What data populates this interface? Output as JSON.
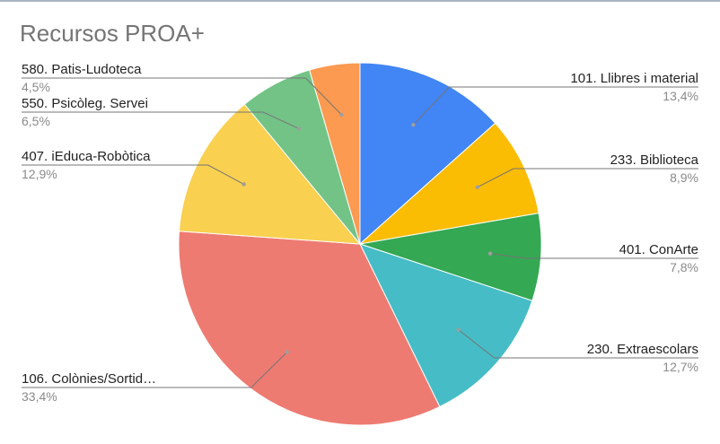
{
  "chart_data": {
    "type": "pie",
    "title": "Recursos PROA+",
    "slices": [
      {
        "label": "101. Llibres i material",
        "value": 13.4,
        "percent_label": "13,4%",
        "color": "#4285f4"
      },
      {
        "label": "233. Biblioteca",
        "value": 8.9,
        "percent_label": "8,9%",
        "color": "#fbbc04"
      },
      {
        "label": "401. ConArte",
        "value": 7.8,
        "percent_label": "7,8%",
        "color": "#34a853"
      },
      {
        "label": "230. Extraescolars",
        "value": 12.7,
        "percent_label": "12,7%",
        "color": "#46bdc6"
      },
      {
        "label": "106. Colònies/Sortid…",
        "value": 33.4,
        "percent_label": "33,4%",
        "color": "#ee7b72"
      },
      {
        "label": "407. iEduca-Robòtica",
        "value": 12.9,
        "percent_label": "12,9%",
        "color": "#f9d04f"
      },
      {
        "label": "550. Psicòleg. Servei",
        "value": 6.5,
        "percent_label": "6,5%",
        "color": "#73c387"
      },
      {
        "label": "580. Patis-Ludoteca",
        "value": 4.5,
        "percent_label": "4,5%",
        "color": "#fb9a50"
      }
    ],
    "start_angle_deg": 0,
    "direction": "clockwise",
    "legend": "none",
    "label_line_color": "#757575"
  }
}
